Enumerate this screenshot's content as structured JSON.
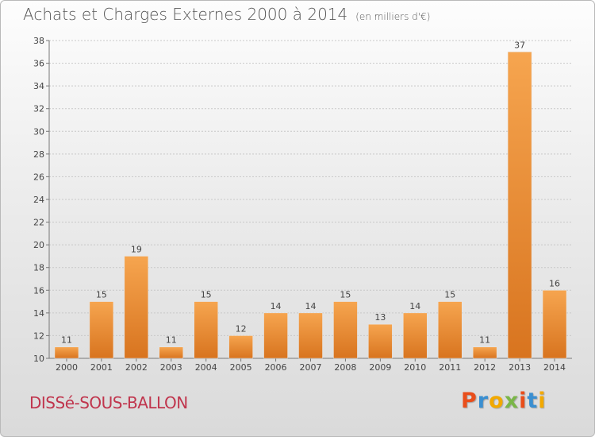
{
  "chart_data": {
    "type": "bar",
    "title": "Achats et Charges Externes 2000 à 2014",
    "subtitle": "(en milliers d'€)",
    "categories": [
      "2000",
      "2001",
      "2002",
      "2003",
      "2004",
      "2005",
      "2006",
      "2007",
      "2008",
      "2009",
      "2010",
      "2011",
      "2012",
      "2013",
      "2014"
    ],
    "values": [
      11,
      15,
      19,
      11,
      15,
      12,
      14,
      14,
      15,
      13,
      14,
      15,
      11,
      37,
      16
    ],
    "ylim": [
      10,
      38
    ],
    "yticks": [
      "10",
      "12",
      "14",
      "16",
      "18",
      "20",
      "22",
      "24",
      "26",
      "28",
      "30",
      "32",
      "34",
      "36",
      "38"
    ],
    "grid": true,
    "bar_color": "#f39c3f"
  },
  "footer": {
    "commune": "DISSé-SOUS-BALLON",
    "logo_text": "Proxiti",
    "logo_colors": [
      "#e94e1b",
      "#3a8fd1",
      "#f2a900",
      "#7ab648",
      "#e94e1b",
      "#3a8fd1",
      "#f2a900"
    ]
  }
}
